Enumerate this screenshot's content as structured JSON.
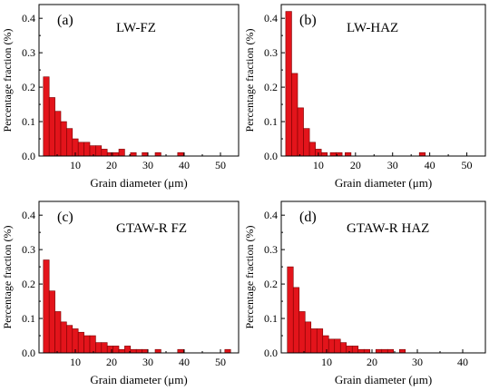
{
  "colors": {
    "bar_fill": "#e3141b",
    "bar_stroke": "#7a0000",
    "axis": "#000000"
  },
  "chart_data": [
    {
      "type": "bar",
      "panel_label": "(a)",
      "title": "LW-FZ",
      "xlabel": "Grain diameter (μm)",
      "ylabel": "Percentage fraction (%)",
      "xlim": [
        0,
        55
      ],
      "ylim": [
        0,
        0.44
      ],
      "xticks": [
        "10",
        "20",
        "30",
        "40",
        "50"
      ],
      "yticks": [
        "0.0",
        "0.1",
        "0.2",
        "0.3",
        "0.4"
      ],
      "bin_width": 1.6,
      "series": [
        {
          "x": [
            2,
            3.6,
            5.2,
            6.8,
            8.4,
            10,
            11.6,
            13.2,
            14.8,
            16.4,
            18,
            19.6,
            21.2,
            22.8,
            26,
            29.2,
            32.8,
            39
          ],
          "values": [
            0.23,
            0.17,
            0.13,
            0.1,
            0.08,
            0.05,
            0.04,
            0.04,
            0.03,
            0.03,
            0.02,
            0.01,
            0.01,
            0.02,
            0.01,
            0.01,
            0.01,
            0.01
          ]
        }
      ]
    },
    {
      "type": "bar",
      "panel_label": "(b)",
      "title": "LW-HAZ",
      "xlabel": "Grain diameter (μm)",
      "ylabel": "Percentage fraction (%)",
      "xlim": [
        0,
        55
      ],
      "ylim": [
        0,
        0.44
      ],
      "xticks": [
        "10",
        "20",
        "30",
        "40",
        "50"
      ],
      "yticks": [
        "0.0",
        "0.1",
        "0.2",
        "0.3",
        "0.4"
      ],
      "bin_width": 1.6,
      "series": [
        {
          "x": [
            2,
            3.6,
            5.2,
            6.8,
            8.4,
            10,
            11.6,
            14,
            15.6,
            18,
            38
          ],
          "values": [
            0.42,
            0.24,
            0.14,
            0.08,
            0.04,
            0.02,
            0.01,
            0.01,
            0.01,
            0.01,
            0.01
          ]
        }
      ]
    },
    {
      "type": "bar",
      "panel_label": "(c)",
      "title": "GTAW-R FZ",
      "xlabel": "Grain diameter (μm)",
      "ylabel": "Percentage fraction (%)",
      "xlim": [
        0,
        55
      ],
      "ylim": [
        0,
        0.44
      ],
      "xticks": [
        "10",
        "20",
        "30",
        "40",
        "50"
      ],
      "yticks": [
        "0.0",
        "0.1",
        "0.2",
        "0.3",
        "0.4"
      ],
      "bin_width": 1.6,
      "series": [
        {
          "x": [
            2,
            3.6,
            5.2,
            6.8,
            8.4,
            10,
            11.6,
            13.2,
            14.8,
            16.4,
            18,
            19.6,
            21.2,
            22.8,
            24.4,
            26,
            27.6,
            29.2,
            32.8,
            39,
            52
          ],
          "values": [
            0.27,
            0.18,
            0.12,
            0.09,
            0.08,
            0.07,
            0.06,
            0.05,
            0.05,
            0.03,
            0.03,
            0.02,
            0.02,
            0.01,
            0.02,
            0.01,
            0.01,
            0.01,
            0.01,
            0.01,
            0.01
          ]
        }
      ]
    },
    {
      "type": "bar",
      "panel_label": "(d)",
      "title": "GTAW-R HAZ",
      "xlabel": "Grain diameter (μm)",
      "ylabel": "Percentage fraction (%)",
      "xlim": [
        0,
        45
      ],
      "ylim": [
        0,
        0.44
      ],
      "xticks": [
        "10",
        "20",
        "30",
        "40"
      ],
      "yticks": [
        "0.0",
        "0.1",
        "0.2",
        "0.3",
        "0.4"
      ],
      "bin_width": 1.3,
      "series": [
        {
          "x": [
            2,
            3.3,
            4.6,
            5.9,
            7.2,
            8.5,
            9.8,
            11.1,
            12.4,
            13.7,
            15,
            16.3,
            17.6,
            18.9,
            21.5,
            22.8,
            24.1,
            26.7
          ],
          "values": [
            0.25,
            0.19,
            0.12,
            0.09,
            0.07,
            0.07,
            0.05,
            0.04,
            0.04,
            0.03,
            0.02,
            0.02,
            0.01,
            0.01,
            0.01,
            0.01,
            0.01,
            0.01
          ]
        }
      ]
    }
  ]
}
